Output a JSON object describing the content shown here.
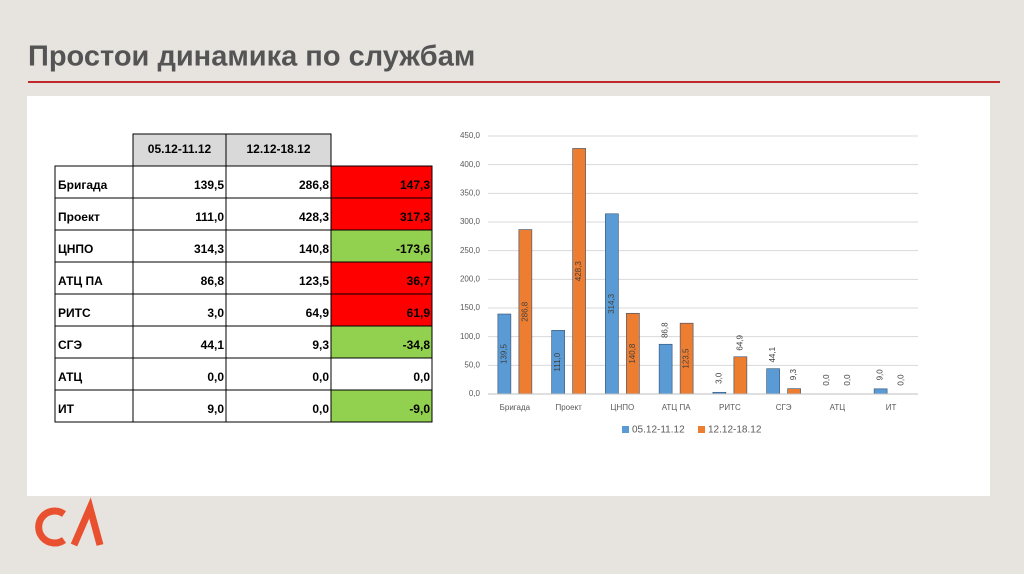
{
  "title": "Простои динамика по службам",
  "table": {
    "header": [
      "05.12-11.12",
      "12.12-18.12"
    ],
    "rows": [
      [
        "Бригада",
        "139,5",
        "286,8",
        "147,3"
      ],
      [
        "Проект",
        "111,0",
        "428,3",
        "317,3"
      ],
      [
        "ЦНПО",
        "314,3",
        "140,8",
        "-173,6"
      ],
      [
        "АТЦ ПА",
        "86,8",
        "123,5",
        "36,7"
      ],
      [
        "РИТС",
        "3,0",
        "64,9",
        "61,9"
      ],
      [
        "СГЭ",
        "44,1",
        "9,3",
        "-34,8"
      ],
      [
        "АТЦ",
        "0,0",
        "0,0",
        "0,0"
      ],
      [
        "ИТ",
        "9,0",
        "0,0",
        "-9,0"
      ]
    ],
    "diff_fills": [
      "#ff0000",
      "#ff0000",
      "#92d050",
      "#ff0000",
      "#ff0000",
      "#92d050",
      "#ffffff",
      "#92d050"
    ]
  },
  "chart_data": {
    "type": "bar",
    "categories": [
      "Бригада",
      "Проект",
      "ЦНПО",
      "АТЦ ПА",
      "РИТС",
      "СГЭ",
      "АТЦ",
      "ИТ"
    ],
    "series": [
      {
        "name": "05.12-11.12",
        "color": "#5b9bd5",
        "values": [
          139.5,
          111.0,
          314.3,
          86.8,
          3.0,
          44.1,
          0.0,
          9.0
        ],
        "value_labels": [
          "139,5",
          "111,0",
          "314,3",
          "86,8",
          "3,0",
          "44,1",
          "0,0",
          "9,0"
        ]
      },
      {
        "name": "12.12-18.12",
        "color": "#ed7d31",
        "values": [
          286.8,
          428.3,
          140.8,
          123.5,
          64.9,
          9.3,
          0.0,
          0.0
        ],
        "value_labels": [
          "286,8",
          "428,3",
          "140,8",
          "123,5",
          "64,9",
          "9,3",
          "0,0",
          "0,0"
        ]
      }
    ],
    "ylim": [
      0,
      450
    ],
    "yticks": [
      {
        "value": 0,
        "label": "0,0"
      },
      {
        "value": 50,
        "label": "50,0"
      },
      {
        "value": 100,
        "label": "100,0"
      },
      {
        "value": 150,
        "label": "150,0"
      },
      {
        "value": 200,
        "label": "200,0"
      },
      {
        "value": 250,
        "label": "250,0"
      },
      {
        "value": 300,
        "label": "300,0"
      },
      {
        "value": 350,
        "label": "350,0"
      },
      {
        "value": 400,
        "label": "400,0"
      },
      {
        "value": 450,
        "label": "450,0"
      }
    ],
    "grid": true,
    "legend": "bottom"
  }
}
